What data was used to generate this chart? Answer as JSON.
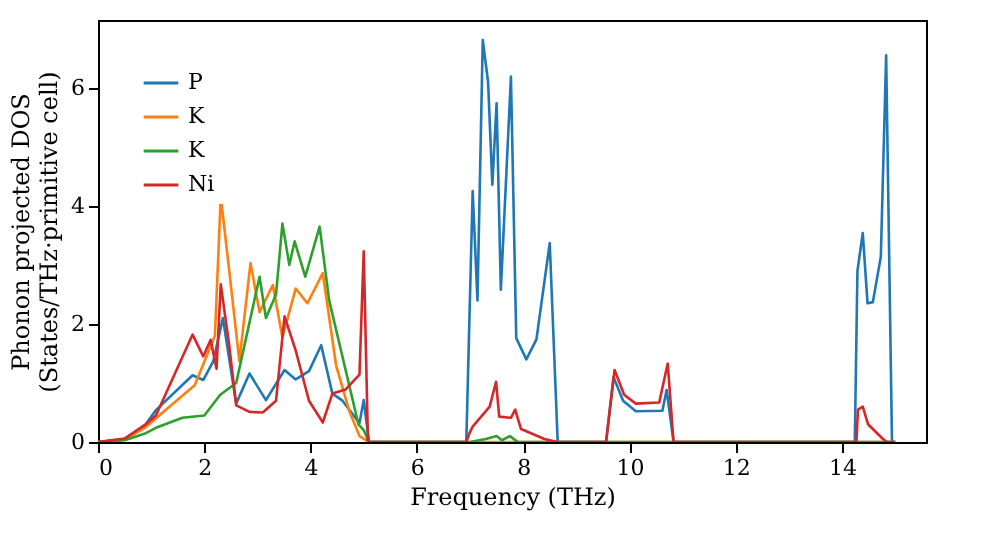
{
  "chart_data": {
    "type": "line",
    "xlabel": "Frequency (THz)",
    "ylabel": "Phonon projected DOS\n(States/THz·primitive cell)",
    "xlim": [
      0,
      15.58
    ],
    "ylim": [
      0,
      7.15
    ],
    "xticks": [
      0,
      2,
      4,
      6,
      8,
      10,
      12,
      14
    ],
    "yticks": [
      0,
      2,
      4,
      6
    ],
    "grid": false,
    "legend": "top left",
    "line_style": "solid",
    "marker": "none",
    "series": [
      {
        "name": "P",
        "color": "#1f77b4",
        "x": [
          0,
          0.5,
          0.9,
          1.09,
          1.78,
          1.98,
          2.17,
          2.35,
          2.6,
          2.85,
          3.16,
          3.51,
          3.72,
          3.97,
          4.2,
          4.41,
          4.6,
          4.92,
          5.0,
          5.1,
          6.93,
          7.05,
          7.14,
          7.24,
          7.34,
          7.42,
          7.5,
          7.58,
          7.77,
          7.87,
          8.06,
          8.25,
          8.5,
          8.65,
          9.56,
          9.7,
          9.88,
          10.12,
          10.62,
          10.7,
          10.83,
          14.24,
          14.29,
          14.39,
          14.48,
          14.58,
          14.73,
          14.83,
          14.94,
          15.0
        ],
        "values": [
          0,
          0.05,
          0.3,
          0.54,
          1.13,
          1.05,
          1.37,
          2.1,
          0.65,
          1.16,
          0.71,
          1.22,
          1.06,
          1.2,
          1.64,
          0.82,
          0.7,
          0.32,
          0.71,
          0,
          0,
          4.25,
          2.4,
          6.81,
          6.1,
          4.36,
          5.74,
          2.58,
          6.19,
          1.76,
          1.4,
          1.74,
          3.37,
          0,
          0,
          1.1,
          0.7,
          0.52,
          0.53,
          0.88,
          0,
          0,
          2.9,
          3.54,
          2.35,
          2.37,
          3.14,
          6.55,
          0,
          0
        ]
      },
      {
        "name": "K",
        "color": "#ff7f0e",
        "x": [
          0,
          0.5,
          0.9,
          1.15,
          1.82,
          2.2,
          2.31,
          2.47,
          2.66,
          2.87,
          3.04,
          3.29,
          3.47,
          3.72,
          3.94,
          4.23,
          4.48,
          4.73,
          4.92,
          5.1,
          15.0
        ],
        "values": [
          0,
          0.04,
          0.25,
          0.45,
          0.96,
          1.8,
          4.16,
          2.9,
          1.37,
          3.03,
          2.2,
          2.66,
          1.77,
          2.6,
          2.35,
          2.86,
          1.3,
          0.52,
          0.1,
          0,
          0
        ]
      },
      {
        "name": "K",
        "color": "#2ca02c",
        "x": [
          0,
          0.5,
          0.9,
          1.09,
          1.59,
          2.0,
          2.3,
          2.6,
          3.04,
          3.16,
          3.35,
          3.47,
          3.6,
          3.7,
          3.9,
          4.17,
          4.35,
          4.9,
          5.0,
          5.1,
          7.0,
          7.3,
          7.5,
          7.6,
          7.75,
          7.9,
          15.0
        ],
        "values": [
          0,
          0.03,
          0.15,
          0.24,
          0.41,
          0.45,
          0.8,
          1.0,
          2.8,
          2.1,
          2.5,
          3.7,
          3.0,
          3.4,
          2.8,
          3.65,
          2.4,
          0.3,
          0.2,
          0,
          0,
          0.05,
          0.1,
          0.03,
          0.1,
          0,
          0
        ]
      },
      {
        "name": "Ni",
        "color": "#d62728",
        "x": [
          0,
          0.5,
          0.9,
          1.09,
          1.78,
          1.98,
          2.12,
          2.23,
          2.31,
          2.47,
          2.6,
          2.85,
          3.1,
          3.35,
          3.51,
          3.72,
          3.97,
          4.23,
          4.41,
          4.66,
          4.92,
          5.0,
          5.08,
          6.93,
          6.99,
          7.05,
          7.37,
          7.49,
          7.55,
          7.77,
          7.85,
          7.96,
          8.4,
          8.65,
          9.56,
          9.72,
          9.9,
          10.12,
          10.56,
          10.72,
          10.83,
          14.27,
          14.3,
          14.39,
          14.49,
          14.77,
          14.85,
          15.0
        ],
        "values": [
          0,
          0.06,
          0.3,
          0.45,
          1.82,
          1.45,
          1.73,
          1.24,
          2.67,
          1.63,
          0.62,
          0.51,
          0.5,
          0.7,
          2.13,
          1.55,
          0.7,
          0.33,
          0.82,
          0.89,
          1.14,
          3.23,
          0,
          0,
          0.15,
          0.26,
          0.6,
          1.02,
          0.43,
          0.41,
          0.55,
          0.22,
          0.05,
          0,
          0,
          1.22,
          0.8,
          0.65,
          0.67,
          1.33,
          0,
          0,
          0.55,
          0.6,
          0.3,
          0.05,
          0,
          0
        ]
      }
    ]
  }
}
